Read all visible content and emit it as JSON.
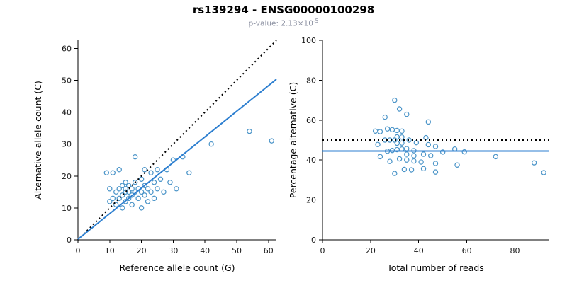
{
  "header": {
    "title": "rs139294 - ENSG00000100298",
    "pvalue_prefix": "p-value: 2.13×10",
    "pvalue_exponent": "-5"
  },
  "colors": {
    "points": "#4a94c8",
    "trend_line": "#2d7fd0",
    "dotted_line": "#000000",
    "subtitle_text": "#8a8fa0"
  },
  "chart_data": [
    {
      "type": "scatter",
      "title": "",
      "xlabel": "Reference allele count (G)",
      "ylabel": "Alternative allele count (C)",
      "xlim": [
        0,
        62.5
      ],
      "ylim": [
        0,
        62.5
      ],
      "xticks": [
        0,
        10,
        20,
        30,
        40,
        50,
        60
      ],
      "yticks": [
        0,
        10,
        20,
        30,
        40,
        50,
        60
      ],
      "grid": false,
      "point_color": "#4a94c8",
      "points": [
        [
          9,
          21
        ],
        [
          10,
          12
        ],
        [
          10,
          16
        ],
        [
          11,
          13
        ],
        [
          11,
          21
        ],
        [
          12,
          11
        ],
        [
          12,
          15
        ],
        [
          13,
          13
        ],
        [
          13,
          16
        ],
        [
          13,
          22
        ],
        [
          14,
          10
        ],
        [
          14,
          14
        ],
        [
          14,
          17
        ],
        [
          15,
          12
        ],
        [
          15,
          15
        ],
        [
          15,
          16
        ],
        [
          15,
          18
        ],
        [
          16,
          13
        ],
        [
          16,
          15
        ],
        [
          16,
          17
        ],
        [
          17,
          11
        ],
        [
          17,
          14
        ],
        [
          17,
          16
        ],
        [
          18,
          15
        ],
        [
          18,
          18
        ],
        [
          18,
          26
        ],
        [
          19,
          13
        ],
        [
          19,
          16
        ],
        [
          20,
          10
        ],
        [
          20,
          15
        ],
        [
          20,
          19
        ],
        [
          21,
          14
        ],
        [
          21,
          17
        ],
        [
          21,
          22
        ],
        [
          22,
          12
        ],
        [
          22,
          16
        ],
        [
          23,
          15
        ],
        [
          23,
          21
        ],
        [
          24,
          13
        ],
        [
          24,
          18
        ],
        [
          25,
          16
        ],
        [
          25,
          22
        ],
        [
          26,
          19
        ],
        [
          27,
          15
        ],
        [
          28,
          22
        ],
        [
          29,
          18
        ],
        [
          30,
          25
        ],
        [
          31,
          16
        ],
        [
          33,
          26
        ],
        [
          35,
          21
        ],
        [
          42,
          30
        ],
        [
          54,
          34
        ],
        [
          61,
          31
        ]
      ],
      "lines": [
        {
          "name": "identity-line",
          "style": "dotted",
          "color": "#000000",
          "x0": 0,
          "y0": 0,
          "x1": 62.5,
          "y1": 62.5
        },
        {
          "name": "regression-line",
          "style": "solid",
          "color": "#2d7fd0",
          "x0": 0,
          "y0": 0.2,
          "x1": 62.5,
          "y1": 50.3
        }
      ]
    },
    {
      "type": "scatter",
      "title": "",
      "xlabel": "Total number of reads",
      "ylabel": "Percentage alternative (C)",
      "xlim": [
        0,
        94
      ],
      "ylim": [
        0,
        100
      ],
      "xticks": [
        0,
        20,
        40,
        60,
        80
      ],
      "yticks": [
        0,
        20,
        40,
        60,
        80,
        100
      ],
      "grid": false,
      "point_color": "#4a94c8",
      "points": [
        [
          30,
          70.0
        ],
        [
          22,
          54.5
        ],
        [
          26,
          61.5
        ],
        [
          24,
          54.2
        ],
        [
          32,
          65.6
        ],
        [
          23,
          47.8
        ],
        [
          27,
          55.6
        ],
        [
          26,
          50.0
        ],
        [
          29,
          55.2
        ],
        [
          35,
          62.9
        ],
        [
          24,
          41.7
        ],
        [
          28,
          50.0
        ],
        [
          31,
          54.8
        ],
        [
          27,
          44.4
        ],
        [
          30,
          50.0
        ],
        [
          31,
          51.6
        ],
        [
          33,
          54.5
        ],
        [
          29,
          44.8
        ],
        [
          31,
          48.4
        ],
        [
          33,
          51.5
        ],
        [
          28,
          39.3
        ],
        [
          31,
          45.2
        ],
        [
          33,
          48.5
        ],
        [
          33,
          45.5
        ],
        [
          36,
          50.0
        ],
        [
          44,
          59.1
        ],
        [
          32,
          40.6
        ],
        [
          35,
          45.7
        ],
        [
          30,
          33.3
        ],
        [
          35,
          42.9
        ],
        [
          39,
          48.7
        ],
        [
          35,
          40.0
        ],
        [
          38,
          44.7
        ],
        [
          43,
          51.2
        ],
        [
          34,
          35.3
        ],
        [
          38,
          42.1
        ],
        [
          38,
          39.5
        ],
        [
          44,
          47.7
        ],
        [
          37,
          35.1
        ],
        [
          42,
          42.9
        ],
        [
          41,
          39.0
        ],
        [
          47,
          46.8
        ],
        [
          45,
          42.2
        ],
        [
          42,
          35.7
        ],
        [
          50,
          44.0
        ],
        [
          47,
          38.3
        ],
        [
          55,
          45.5
        ],
        [
          47,
          34.0
        ],
        [
          59,
          44.1
        ],
        [
          56,
          37.5
        ],
        [
          72,
          41.7
        ],
        [
          88,
          38.6
        ],
        [
          92,
          33.7
        ]
      ],
      "lines": [
        {
          "name": "expected-fifty-percent-line",
          "style": "dotted",
          "color": "#000000",
          "x0": 0,
          "y0": 50,
          "x1": 94,
          "y1": 50
        },
        {
          "name": "mean-percentage-line",
          "style": "solid",
          "color": "#2d7fd0",
          "x0": 0,
          "y0": 44.5,
          "x1": 94,
          "y1": 44.5
        }
      ]
    }
  ]
}
